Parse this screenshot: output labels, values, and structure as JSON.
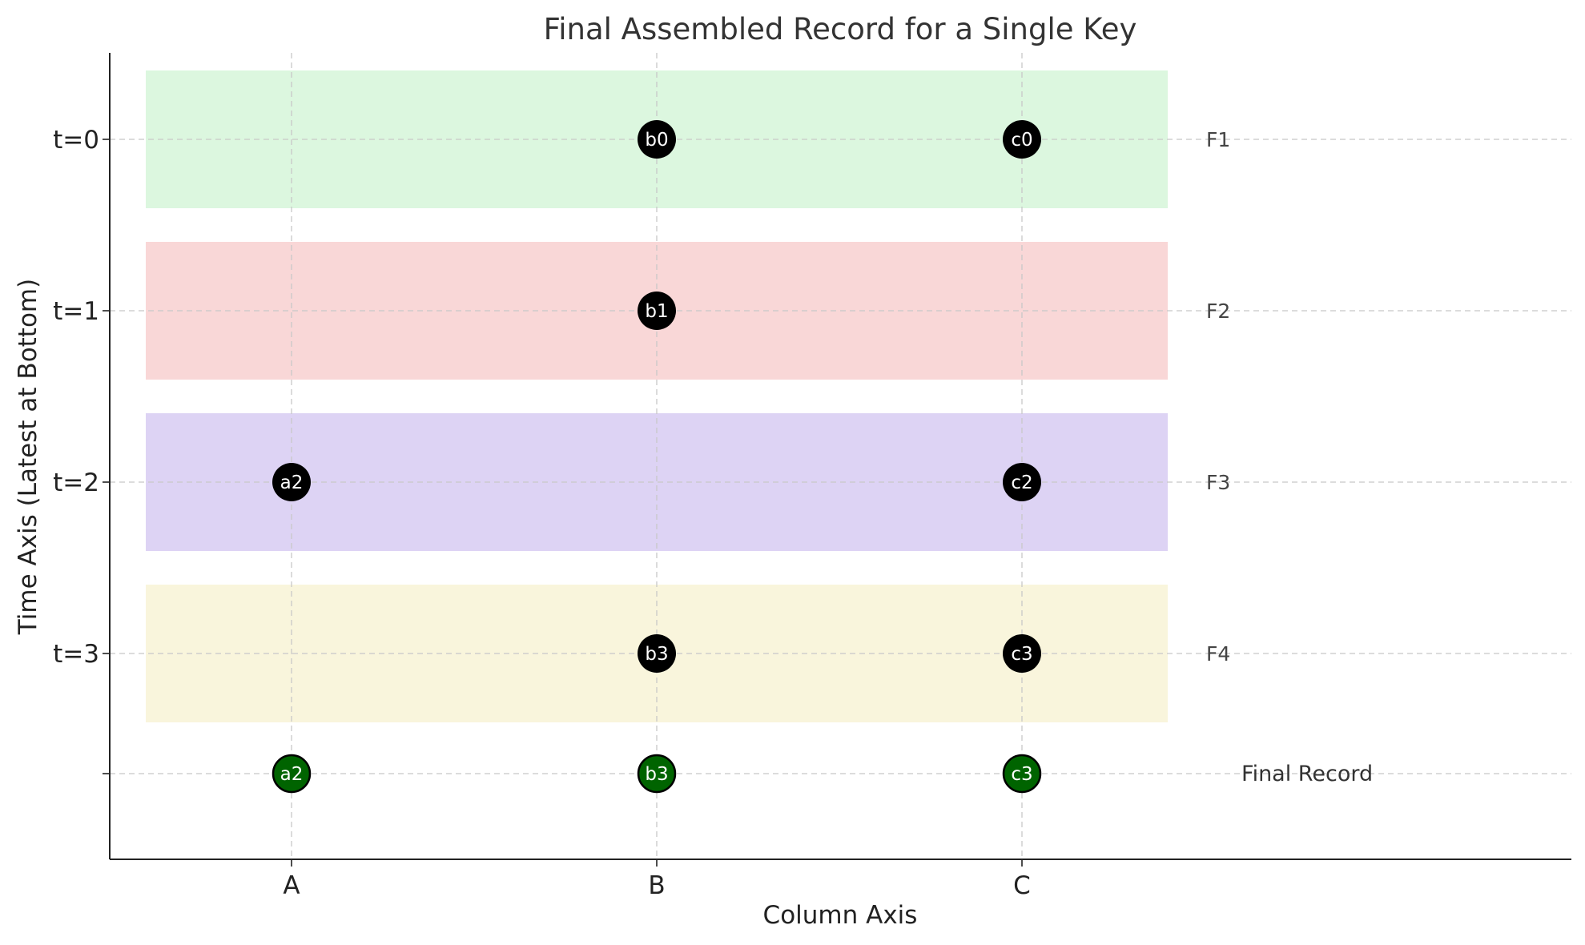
{
  "chart_data": {
    "type": "scatter",
    "title": "Final Assembled Record for a Single Key",
    "xlabel": "Column Axis",
    "ylabel": "Time Axis (Latest at Bottom)",
    "categories": [
      "A",
      "B",
      "C"
    ],
    "y_ticks": [
      "t=0",
      "t=1",
      "t=2",
      "t=3",
      ""
    ],
    "grid": true,
    "rows": [
      {
        "name": "F1",
        "time": "t=0",
        "color": "#dcf7df",
        "cells": [
          {
            "col": "B",
            "label": "b0"
          },
          {
            "col": "C",
            "label": "c0"
          }
        ]
      },
      {
        "name": "F2",
        "time": "t=1",
        "color": "#f9d7d7",
        "cells": [
          {
            "col": "B",
            "label": "b1"
          }
        ]
      },
      {
        "name": "F3",
        "time": "t=2",
        "color": "#ddd3f4",
        "cells": [
          {
            "col": "A",
            "label": "a2"
          },
          {
            "col": "C",
            "label": "c2"
          }
        ]
      },
      {
        "name": "F4",
        "time": "t=3",
        "color": "#f9f5dc",
        "cells": [
          {
            "col": "B",
            "label": "b3"
          },
          {
            "col": "C",
            "label": "c3"
          }
        ]
      }
    ],
    "final_record": {
      "label": "Final Record",
      "color": "#006400",
      "cells": [
        {
          "col": "A",
          "label": "a2"
        },
        {
          "col": "B",
          "label": "b3"
        },
        {
          "col": "C",
          "label": "c3"
        }
      ]
    },
    "point_color": "#000000"
  }
}
